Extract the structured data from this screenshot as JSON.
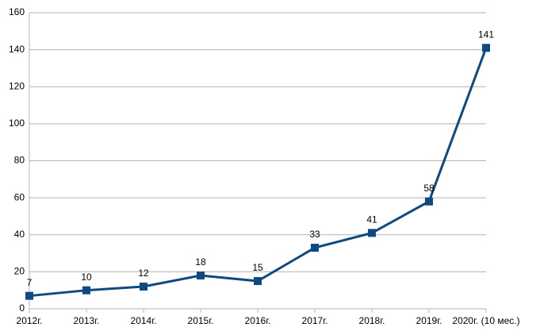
{
  "chart_data": {
    "type": "line",
    "categories": [
      "2012г.",
      "2013г.",
      "2014г.",
      "2015г.",
      "2016г.",
      "2017г.",
      "2018г.",
      "2019г.",
      "2020г. (10 мес.)"
    ],
    "series": [
      {
        "color": "#0e4a80",
        "values": [
          7,
          10,
          12,
          18,
          15,
          33,
          41,
          58,
          141
        ]
      }
    ],
    "ylim": [
      0,
      160
    ],
    "yticks": [
      0,
      20,
      40,
      60,
      80,
      100,
      120,
      140,
      160
    ],
    "grid": true
  }
}
